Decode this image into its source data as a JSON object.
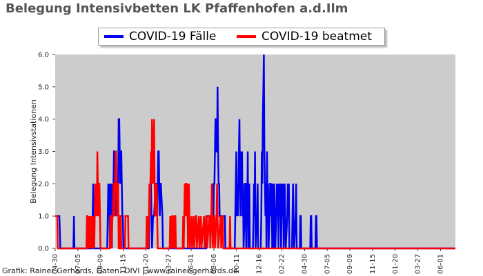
{
  "header": {
    "title": "Belegung Intensivbetten LK Pfaffenhofen a.d.Ilm"
  },
  "footer": {
    "credit": "Grafik: Rainer Gerhards, Daten: DIVI | www.rainer-gerhards.de"
  },
  "chart_data": {
    "type": "line",
    "title": "Belegung Intensivbetten LK Pfaffenhofen a.d.Ilm",
    "xlabel": "",
    "ylabel": "Belegung Intensivstationen",
    "ylim": [
      0,
      6
    ],
    "yticks": [
      "0.0",
      "1.0",
      "2.0",
      "3.0",
      "4.0",
      "5.0",
      "6.0"
    ],
    "xticks": [
      "04-30",
      "07-05",
      "09-09",
      "11-15",
      "01-20",
      "03-27",
      "06-01",
      "08-06",
      "10-11",
      "12-16",
      "02-22",
      "04-30",
      "07-05",
      "09-09",
      "11-15",
      "01-20",
      "03-27",
      "06-01"
    ],
    "x_count": 770,
    "grid": false,
    "legend": "top-center",
    "background": "#cccccc",
    "series": [
      {
        "name": "COVID-19 Fälle",
        "color": "#0000ee",
        "points": [
          [
            0,
            1
          ],
          [
            8,
            1
          ],
          [
            10,
            0
          ],
          [
            35,
            0
          ],
          [
            36,
            1
          ],
          [
            37,
            0
          ],
          [
            70,
            0
          ],
          [
            72,
            1
          ],
          [
            73,
            2
          ],
          [
            74,
            0
          ],
          [
            100,
            0
          ],
          [
            101,
            1
          ],
          [
            102,
            2
          ],
          [
            103,
            1
          ],
          [
            104,
            2
          ],
          [
            105,
            0
          ],
          [
            106,
            2
          ],
          [
            107,
            1
          ],
          [
            108,
            2
          ],
          [
            109,
            0
          ],
          [
            110,
            2
          ],
          [
            111,
            1
          ],
          [
            112,
            2
          ],
          [
            113,
            3
          ],
          [
            114,
            3
          ],
          [
            115,
            2
          ],
          [
            116,
            1
          ],
          [
            117,
            2
          ],
          [
            118,
            1
          ],
          [
            119,
            2
          ],
          [
            120,
            1
          ],
          [
            121,
            2
          ],
          [
            122,
            4
          ],
          [
            123,
            4
          ],
          [
            124,
            3
          ],
          [
            125,
            2
          ],
          [
            126,
            3
          ],
          [
            127,
            3
          ],
          [
            128,
            2
          ],
          [
            129,
            1
          ],
          [
            130,
            1
          ],
          [
            131,
            0
          ],
          [
            180,
            0
          ],
          [
            181,
            1
          ],
          [
            182,
            2
          ],
          [
            183,
            1
          ],
          [
            184,
            2
          ],
          [
            185,
            1
          ],
          [
            186,
            0
          ],
          [
            188,
            1
          ],
          [
            190,
            1
          ],
          [
            193,
            2
          ],
          [
            195,
            2
          ],
          [
            196,
            1
          ],
          [
            197,
            2
          ],
          [
            198,
            3
          ],
          [
            199,
            3
          ],
          [
            200,
            2
          ],
          [
            201,
            1
          ],
          [
            202,
            2
          ],
          [
            203,
            2
          ],
          [
            206,
            1
          ],
          [
            207,
            0
          ],
          [
            290,
            0
          ],
          [
            291,
            1
          ],
          [
            301,
            1
          ],
          [
            302,
            2
          ],
          [
            304,
            1
          ],
          [
            305,
            2
          ],
          [
            306,
            2
          ],
          [
            307,
            3
          ],
          [
            308,
            4
          ],
          [
            309,
            4
          ],
          [
            310,
            3
          ],
          [
            311,
            3
          ],
          [
            312,
            5
          ],
          [
            313,
            3
          ],
          [
            314,
            2
          ],
          [
            315,
            2
          ],
          [
            316,
            1
          ],
          [
            326,
            1
          ],
          [
            327,
            0
          ],
          [
            345,
            0
          ],
          [
            346,
            1
          ],
          [
            347,
            2
          ],
          [
            348,
            3
          ],
          [
            349,
            1
          ],
          [
            350,
            2
          ],
          [
            351,
            1
          ],
          [
            352,
            2
          ],
          [
            353,
            3
          ],
          [
            354,
            4
          ],
          [
            355,
            2
          ],
          [
            356,
            1
          ],
          [
            357,
            3
          ],
          [
            358,
            2
          ],
          [
            359,
            3
          ],
          [
            360,
            1
          ],
          [
            361,
            2
          ],
          [
            362,
            0
          ],
          [
            364,
            1
          ],
          [
            365,
            2
          ],
          [
            366,
            2
          ],
          [
            367,
            0
          ],
          [
            368,
            2
          ],
          [
            369,
            1
          ],
          [
            370,
            3
          ],
          [
            371,
            0
          ],
          [
            372,
            1
          ],
          [
            373,
            2
          ],
          [
            374,
            0
          ],
          [
            380,
            0
          ],
          [
            381,
            1
          ],
          [
            382,
            2
          ],
          [
            383,
            1
          ],
          [
            384,
            3
          ],
          [
            385,
            0
          ],
          [
            388,
            1
          ],
          [
            389,
            2
          ],
          [
            390,
            0
          ],
          [
            395,
            0
          ],
          [
            396,
            1
          ],
          [
            397,
            3
          ],
          [
            398,
            2
          ],
          [
            399,
            4
          ],
          [
            400,
            5
          ],
          [
            401,
            6
          ],
          [
            402,
            3
          ],
          [
            403,
            2
          ],
          [
            404,
            1
          ],
          [
            405,
            2
          ],
          [
            406,
            0
          ],
          [
            407,
            3
          ],
          [
            408,
            1
          ],
          [
            409,
            2
          ],
          [
            410,
            0
          ],
          [
            412,
            1
          ],
          [
            413,
            2
          ],
          [
            414,
            2
          ],
          [
            415,
            1
          ],
          [
            416,
            2
          ],
          [
            417,
            0
          ],
          [
            418,
            1
          ],
          [
            419,
            2
          ],
          [
            420,
            0
          ],
          [
            421,
            2
          ],
          [
            422,
            1
          ],
          [
            423,
            0
          ],
          [
            425,
            1
          ],
          [
            426,
            2
          ],
          [
            427,
            1
          ],
          [
            428,
            2
          ],
          [
            429,
            0
          ],
          [
            430,
            1
          ],
          [
            431,
            2
          ],
          [
            432,
            1
          ],
          [
            433,
            2
          ],
          [
            434,
            0
          ],
          [
            435,
            1
          ],
          [
            436,
            2
          ],
          [
            437,
            1
          ],
          [
            438,
            2
          ],
          [
            439,
            0
          ],
          [
            440,
            1
          ],
          [
            441,
            2
          ],
          [
            442,
            1
          ],
          [
            443,
            0
          ],
          [
            446,
            1
          ],
          [
            447,
            2
          ],
          [
            448,
            1
          ],
          [
            449,
            2
          ],
          [
            450,
            0
          ],
          [
            455,
            0
          ],
          [
            456,
            1
          ],
          [
            457,
            2
          ],
          [
            458,
            1
          ],
          [
            459,
            0
          ],
          [
            462,
            1
          ],
          [
            463,
            2
          ],
          [
            464,
            0
          ],
          [
            470,
            0
          ],
          [
            471,
            1
          ],
          [
            472,
            1
          ],
          [
            473,
            0
          ],
          [
            490,
            0
          ],
          [
            491,
            1
          ],
          [
            492,
            1
          ],
          [
            493,
            0
          ],
          [
            500,
            0
          ],
          [
            501,
            1
          ],
          [
            502,
            1
          ],
          [
            503,
            0
          ]
        ]
      },
      {
        "name": "COVID-19 beatmet",
        "color": "#ff0000",
        "points": [
          [
            0,
            1
          ],
          [
            4,
            1
          ],
          [
            5,
            0
          ],
          [
            60,
            0
          ],
          [
            61,
            1
          ],
          [
            62,
            1
          ],
          [
            63,
            0
          ],
          [
            64,
            1
          ],
          [
            65,
            0
          ],
          [
            66,
            1
          ],
          [
            67,
            0
          ],
          [
            68,
            1
          ],
          [
            69,
            0
          ],
          [
            70,
            1
          ],
          [
            71,
            0
          ],
          [
            72,
            1
          ],
          [
            73,
            0
          ],
          [
            74,
            1
          ],
          [
            75,
            0
          ],
          [
            76,
            1
          ],
          [
            77,
            2
          ],
          [
            78,
            1
          ],
          [
            79,
            2
          ],
          [
            80,
            1
          ],
          [
            81,
            3
          ],
          [
            82,
            2
          ],
          [
            83,
            1
          ],
          [
            84,
            2
          ],
          [
            85,
            2
          ],
          [
            86,
            1
          ],
          [
            87,
            0
          ],
          [
            105,
            0
          ],
          [
            106,
            1
          ],
          [
            107,
            1
          ],
          [
            108,
            0
          ],
          [
            110,
            1
          ],
          [
            111,
            1
          ],
          [
            112,
            2
          ],
          [
            113,
            2
          ],
          [
            114,
            1
          ],
          [
            115,
            2
          ],
          [
            116,
            3
          ],
          [
            117,
            3
          ],
          [
            118,
            2
          ],
          [
            119,
            1
          ],
          [
            120,
            2
          ],
          [
            121,
            2
          ],
          [
            122,
            0
          ],
          [
            124,
            0
          ],
          [
            125,
            1
          ],
          [
            126,
            1
          ],
          [
            127,
            0
          ],
          [
            134,
            0
          ],
          [
            135,
            1
          ],
          [
            140,
            1
          ],
          [
            141,
            0
          ],
          [
            175,
            0
          ],
          [
            176,
            1
          ],
          [
            177,
            0
          ],
          [
            178,
            1
          ],
          [
            179,
            0
          ],
          [
            180,
            1
          ],
          [
            181,
            2
          ],
          [
            182,
            1
          ],
          [
            183,
            2
          ],
          [
            184,
            3
          ],
          [
            185,
            2
          ],
          [
            186,
            4
          ],
          [
            187,
            3
          ],
          [
            188,
            2
          ],
          [
            189,
            3
          ],
          [
            190,
            4
          ],
          [
            191,
            2
          ],
          [
            192,
            1
          ],
          [
            193,
            2
          ],
          [
            194,
            1
          ],
          [
            195,
            2
          ],
          [
            196,
            1
          ],
          [
            197,
            0
          ],
          [
            220,
            0
          ],
          [
            221,
            1
          ],
          [
            222,
            0
          ],
          [
            223,
            1
          ],
          [
            224,
            0
          ],
          [
            225,
            1
          ],
          [
            226,
            1
          ],
          [
            227,
            0
          ],
          [
            228,
            1
          ],
          [
            229,
            0
          ],
          [
            230,
            1
          ],
          [
            231,
            1
          ],
          [
            232,
            0
          ],
          [
            245,
            0
          ],
          [
            246,
            1
          ],
          [
            247,
            0
          ],
          [
            248,
            1
          ],
          [
            249,
            2
          ],
          [
            250,
            1
          ],
          [
            251,
            2
          ],
          [
            252,
            2
          ],
          [
            253,
            1
          ],
          [
            254,
            2
          ],
          [
            255,
            0
          ],
          [
            256,
            1
          ],
          [
            257,
            2
          ],
          [
            258,
            1
          ],
          [
            259,
            0
          ],
          [
            262,
            1
          ],
          [
            263,
            0
          ],
          [
            266,
            1
          ],
          [
            267,
            0
          ],
          [
            270,
            1
          ],
          [
            271,
            1
          ],
          [
            272,
            0
          ],
          [
            276,
            1
          ],
          [
            277,
            0
          ],
          [
            280,
            1
          ],
          [
            281,
            0
          ],
          [
            286,
            1
          ],
          [
            287,
            0
          ],
          [
            290,
            1
          ],
          [
            291,
            1
          ],
          [
            292,
            0
          ],
          [
            296,
            1
          ],
          [
            297,
            1
          ],
          [
            298,
            0
          ],
          [
            300,
            1
          ],
          [
            301,
            2
          ],
          [
            302,
            1
          ],
          [
            303,
            0
          ],
          [
            305,
            1
          ],
          [
            306,
            1
          ],
          [
            307,
            0
          ],
          [
            310,
            1
          ],
          [
            311,
            2
          ],
          [
            312,
            1
          ],
          [
            313,
            0
          ],
          [
            318,
            1
          ],
          [
            319,
            0
          ],
          [
            321,
            1
          ],
          [
            322,
            1
          ],
          [
            323,
            0
          ],
          [
            335,
            0
          ],
          [
            336,
            1
          ],
          [
            337,
            0
          ]
        ]
      }
    ]
  }
}
